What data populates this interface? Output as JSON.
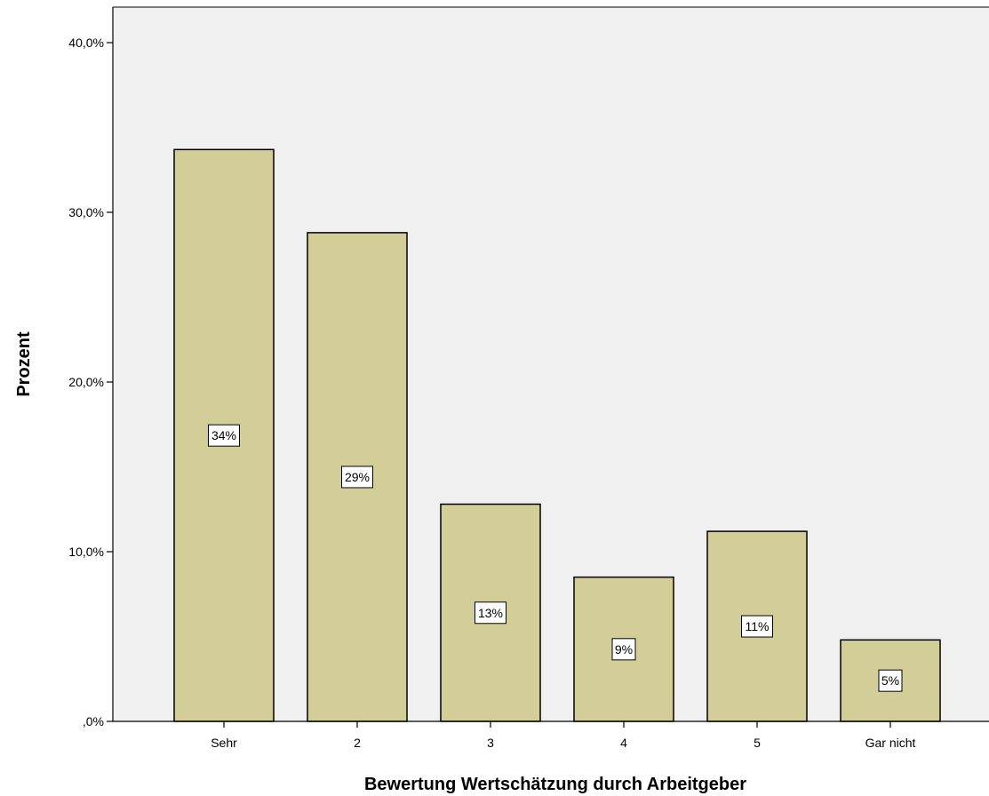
{
  "chart_data": {
    "type": "bar",
    "categories": [
      "Sehr",
      "2",
      "3",
      "4",
      "5",
      "Gar nicht"
    ],
    "values": [
      33.7,
      28.8,
      12.8,
      8.5,
      11.2,
      4.8
    ],
    "data_labels": [
      "34%",
      "29%",
      "13%",
      "9%",
      "11%",
      "5%"
    ],
    "title": "",
    "xlabel": "Bewertung Wertschätzung durch Arbeitgeber",
    "ylabel": "Prozent",
    "ylim": [
      0,
      40
    ],
    "yticks": [
      0,
      10,
      20,
      30,
      40
    ],
    "ytick_labels": [
      ",0%",
      "10,0%",
      "20,0%",
      "30,0%",
      "40,0%"
    ],
    "grid": false,
    "colors": {
      "plot_background": "#f0f0f0",
      "bar_fill": "#d3ce97",
      "bar_stroke": "#000000",
      "label_box_fill": "#ffffff"
    }
  }
}
